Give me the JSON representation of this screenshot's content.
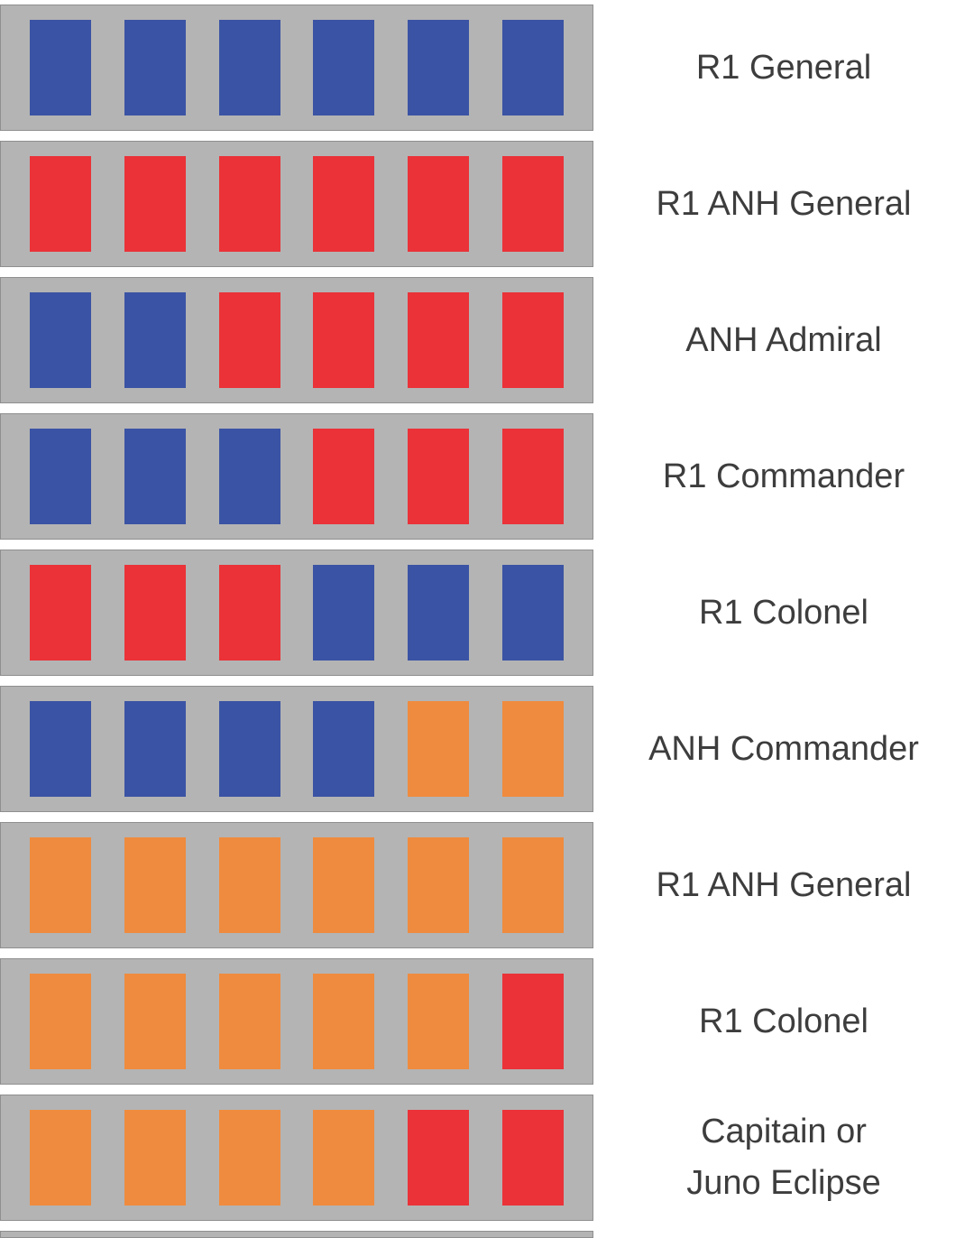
{
  "page": {
    "background": "#ffffff"
  },
  "colors": {
    "blue": "#3a53a4",
    "red": "#ea3238",
    "orange": "#ef8b3e",
    "plaque_fill": "#b4b4b4",
    "plaque_border": "#8f8f8f",
    "label_text": "#3d3d3d"
  },
  "rows": [
    {
      "label": "R1 General",
      "squares": [
        "blue",
        "blue",
        "blue",
        "blue",
        "blue",
        "blue"
      ]
    },
    {
      "label": "R1 ANH General",
      "squares": [
        "red",
        "red",
        "red",
        "red",
        "red",
        "red"
      ]
    },
    {
      "label": "ANH Admiral",
      "squares": [
        "blue",
        "blue",
        "red",
        "red",
        "red",
        "red"
      ]
    },
    {
      "label": "R1 Commander",
      "squares": [
        "blue",
        "blue",
        "blue",
        "red",
        "red",
        "red"
      ]
    },
    {
      "label": "R1 Colonel",
      "squares": [
        "red",
        "red",
        "red",
        "blue",
        "blue",
        "blue"
      ]
    },
    {
      "label": "ANH Commander",
      "squares": [
        "blue",
        "blue",
        "blue",
        "blue",
        "orange",
        "orange"
      ]
    },
    {
      "label": "R1 ANH General",
      "squares": [
        "orange",
        "orange",
        "orange",
        "orange",
        "orange",
        "orange"
      ]
    },
    {
      "label": "R1 Colonel",
      "squares": [
        "orange",
        "orange",
        "orange",
        "orange",
        "orange",
        "red"
      ]
    },
    {
      "label": "Capitain or\nJuno Eclipse",
      "squares": [
        "orange",
        "orange",
        "orange",
        "orange",
        "red",
        "red"
      ]
    }
  ]
}
